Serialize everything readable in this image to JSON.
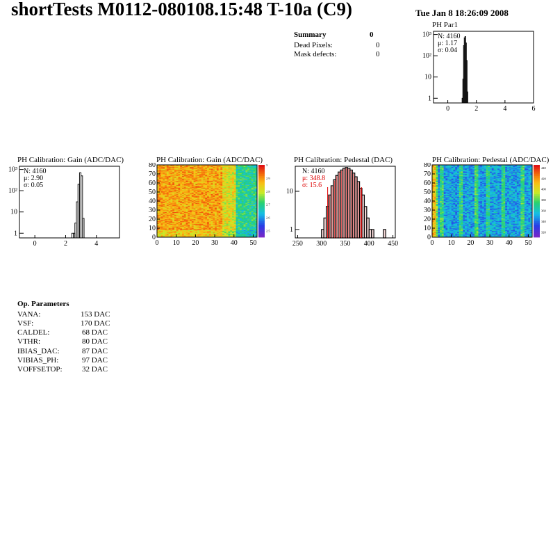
{
  "header": {
    "title": "shortTests M0112-080108.15:48 T-10a (C9)",
    "date": "Tue Jan  8 18:26:09 2008"
  },
  "summary": {
    "title": "Summary",
    "total": "0",
    "rows": [
      {
        "label": "Dead Pixels:",
        "value": "0"
      },
      {
        "label": "Mask defects:",
        "value": "0"
      }
    ]
  },
  "op_params": {
    "title": "Op. Parameters",
    "rows": [
      {
        "label": "VANA:",
        "value": "153 DAC"
      },
      {
        "label": "VSF:",
        "value": "170 DAC"
      },
      {
        "label": "CALDEL:",
        "value": "68 DAC"
      },
      {
        "label": "VTHR:",
        "value": "80 DAC"
      },
      {
        "label": "IBIAS_DAC:",
        "value": "87 DAC"
      },
      {
        "label": "VIBIAS_PH:",
        "value": "97 DAC"
      },
      {
        "label": "VOFFSETOP:",
        "value": "32 DAC"
      }
    ]
  },
  "chart_data": [
    {
      "type": "bar",
      "title": "PH Par1",
      "stats": [
        "N: 4160",
        "μ: 1.17",
        "σ: 0.04"
      ],
      "xlim": [
        -1,
        6
      ],
      "xticks": [
        "0",
        "2",
        "4",
        "6"
      ],
      "ylog": true,
      "yticks": [
        "1",
        "10",
        "10²",
        "10³"
      ],
      "x": [
        1.0,
        1.05,
        1.1,
        1.15,
        1.2,
        1.25,
        1.3,
        1.35
      ],
      "values": [
        1,
        8,
        300,
        700,
        800,
        400,
        60,
        2
      ]
    },
    {
      "type": "bar",
      "title": "PH Calibration: Gain (ADC/DAC)",
      "stats": [
        "N: 4160",
        "μ: 2.90",
        "σ: 0.05"
      ],
      "xlim": [
        -1,
        5.5
      ],
      "xticks": [
        "0",
        "2",
        "4"
      ],
      "ylog": true,
      "yticks": [
        "1",
        "10",
        "10²",
        "10³"
      ],
      "x": [
        2.4,
        2.5,
        2.6,
        2.7,
        2.8,
        2.9,
        3.0,
        3.1
      ],
      "values": [
        1,
        1,
        3,
        30,
        200,
        700,
        500,
        5
      ]
    },
    {
      "type": "heatmap",
      "title": "PH Calibration: Gain (ADC/DAC)",
      "xlim": [
        0,
        52
      ],
      "ylim": [
        0,
        80
      ],
      "xticks": [
        "0",
        "10",
        "20",
        "30",
        "40",
        "50"
      ],
      "yticks": [
        "0",
        "10",
        "20",
        "30",
        "40",
        "50",
        "60",
        "70",
        "80"
      ],
      "zticks": [
        "2.5",
        "2.6",
        "2.7",
        "2.8",
        "2.9",
        "3"
      ],
      "zlim": [
        2.45,
        3.0
      ],
      "palette": "warm"
    },
    {
      "type": "bar",
      "title": "PH Calibration: Pedestal (DAC)",
      "stats": [
        "N: 4160",
        "μ: 348.8",
        "σ: 15.6"
      ],
      "xlim": [
        245,
        455
      ],
      "xticks": [
        "250",
        "300",
        "350",
        "400",
        "450"
      ],
      "ylog": true,
      "yticks": [
        "1",
        "10"
      ],
      "cut_lines": [
        313,
        384
      ],
      "x": [
        300,
        305,
        310,
        315,
        320,
        325,
        330,
        335,
        340,
        345,
        350,
        355,
        360,
        365,
        370,
        375,
        380,
        385,
        390,
        395,
        400,
        405,
        430
      ],
      "values": [
        1,
        2,
        4,
        8,
        14,
        20,
        26,
        32,
        36,
        40,
        42,
        40,
        36,
        30,
        24,
        18,
        12,
        8,
        4,
        2,
        1,
        1,
        1
      ]
    },
    {
      "type": "heatmap",
      "title": "PH Calibration: Pedestal (ADC/DAC)",
      "xlim": [
        0,
        52
      ],
      "ylim": [
        0,
        80
      ],
      "xticks": [
        "0",
        "10",
        "20",
        "30",
        "40",
        "50"
      ],
      "yticks": [
        "0",
        "10",
        "20",
        "30",
        "40",
        "50",
        "60",
        "70",
        "80"
      ],
      "zticks": [
        "320",
        "340",
        "360",
        "380",
        "400",
        "420",
        "440"
      ],
      "zlim": [
        310,
        445
      ],
      "palette": "cool"
    }
  ]
}
